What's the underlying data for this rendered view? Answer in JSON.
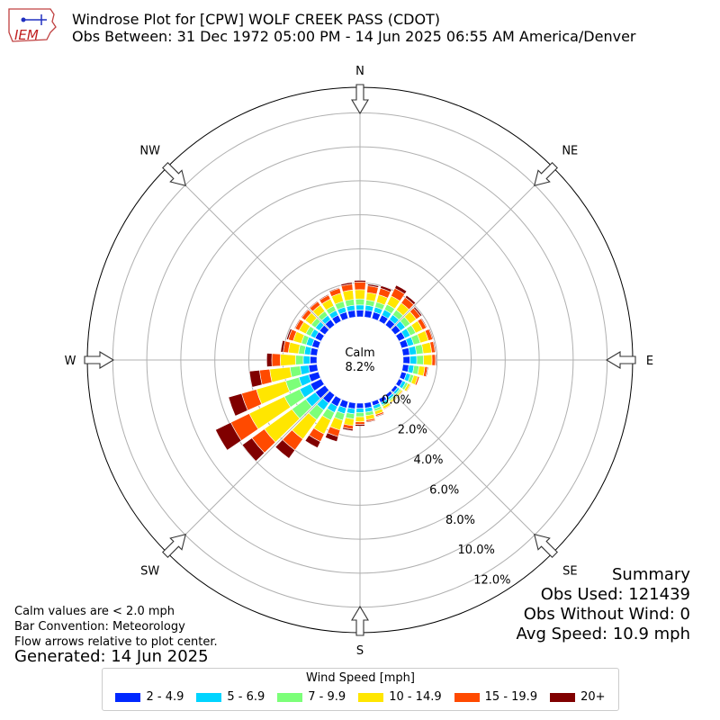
{
  "header": {
    "title_line1": "Windrose Plot for [CPW] WOLF CREEK PASS (CDOT)",
    "title_line2": "Obs Between: 31 Dec 1972 05:00 PM - 14 Jun 2025 06:55 AM America/Denver",
    "logo_text": "IEM"
  },
  "notes": {
    "line1": "Calm values are < 2.0 mph",
    "line2": "Bar Convention: Meteorology",
    "line3": "Flow arrows relative to plot center.",
    "generated": "Generated: 14 Jun 2025"
  },
  "summary": {
    "title": "Summary",
    "obs_used": "Obs Used: 121439",
    "obs_without_wind": "Obs Without Wind: 0",
    "avg_speed": "Avg Speed: 10.9 mph"
  },
  "chart_data": {
    "type": "windrose",
    "calm_label": "Calm",
    "calm_value": "8.2%",
    "directions": [
      "N",
      "NE",
      "E",
      "SE",
      "S",
      "SW",
      "W",
      "NW"
    ],
    "radial_ticks": [
      "0.0%",
      "2.0%",
      "4.0%",
      "6.0%",
      "8.0%",
      "10.0%",
      "12.0%"
    ],
    "rmax": 13.5,
    "calm_percent": 8.2,
    "legend_title": "Wind Speed [mph]",
    "bins": [
      {
        "label": "2 - 4.9",
        "color": "#0028ff"
      },
      {
        "label": "5 - 6.9",
        "color": "#00d4ff"
      },
      {
        "label": "7 - 9.9",
        "color": "#7cff79"
      },
      {
        "label": "10 - 14.9",
        "color": "#ffe600"
      },
      {
        "label": "15 - 19.9",
        "color": "#ff4a00"
      },
      {
        "label": "20+",
        "color": "#800000"
      }
    ],
    "sector_bearings": [
      0,
      10,
      20,
      30,
      40,
      50,
      60,
      70,
      80,
      90,
      100,
      110,
      120,
      130,
      140,
      150,
      160,
      170,
      180,
      190,
      200,
      210,
      220,
      230,
      240,
      250,
      260,
      270,
      280,
      290,
      300,
      310,
      320,
      330,
      340,
      350
    ],
    "sector_percent": [
      [
        0.4,
        0.3,
        0.35,
        0.55,
        0.45,
        0.1
      ],
      [
        0.4,
        0.3,
        0.3,
        0.45,
        0.4,
        0.1
      ],
      [
        0.4,
        0.3,
        0.3,
        0.45,
        0.4,
        0.15
      ],
      [
        0.4,
        0.35,
        0.35,
        0.55,
        0.5,
        0.2
      ],
      [
        0.4,
        0.35,
        0.35,
        0.5,
        0.4,
        0.15
      ],
      [
        0.4,
        0.35,
        0.35,
        0.45,
        0.3,
        0.1
      ],
      [
        0.4,
        0.35,
        0.35,
        0.45,
        0.25,
        0.05
      ],
      [
        0.4,
        0.35,
        0.4,
        0.5,
        0.25,
        0.05
      ],
      [
        0.4,
        0.4,
        0.4,
        0.5,
        0.2,
        0.05
      ],
      [
        0.4,
        0.4,
        0.4,
        0.5,
        0.2,
        0.05
      ],
      [
        0.35,
        0.3,
        0.3,
        0.35,
        0.15,
        0.05
      ],
      [
        0.3,
        0.25,
        0.2,
        0.25,
        0.1,
        0.03
      ],
      [
        0.25,
        0.2,
        0.15,
        0.15,
        0.05,
        0.02
      ],
      [
        0.2,
        0.15,
        0.1,
        0.1,
        0.05,
        0.02
      ],
      [
        0.2,
        0.15,
        0.1,
        0.1,
        0.05,
        0.02
      ],
      [
        0.25,
        0.15,
        0.1,
        0.15,
        0.05,
        0.03
      ],
      [
        0.25,
        0.2,
        0.15,
        0.2,
        0.1,
        0.05
      ],
      [
        0.3,
        0.25,
        0.2,
        0.25,
        0.1,
        0.05
      ],
      [
        0.3,
        0.25,
        0.25,
        0.3,
        0.15,
        0.1
      ],
      [
        0.35,
        0.3,
        0.3,
        0.4,
        0.2,
        0.1
      ],
      [
        0.4,
        0.35,
        0.4,
        0.6,
        0.4,
        0.3
      ],
      [
        0.5,
        0.4,
        0.5,
        0.9,
        0.5,
        0.4
      ],
      [
        0.6,
        0.5,
        0.7,
        1.4,
        0.8,
        0.6
      ],
      [
        0.7,
        0.7,
        1.0,
        2.0,
        0.9,
        0.7
      ],
      [
        0.7,
        0.7,
        1.0,
        2.3,
        1.2,
        1.0
      ],
      [
        0.6,
        0.6,
        0.8,
        1.8,
        0.9,
        0.8
      ],
      [
        0.5,
        0.5,
        0.6,
        1.2,
        0.6,
        0.6
      ],
      [
        0.4,
        0.4,
        0.45,
        0.9,
        0.5,
        0.3
      ],
      [
        0.4,
        0.35,
        0.35,
        0.6,
        0.3,
        0.15
      ],
      [
        0.4,
        0.35,
        0.3,
        0.5,
        0.3,
        0.1
      ],
      [
        0.4,
        0.3,
        0.3,
        0.45,
        0.25,
        0.05
      ],
      [
        0.4,
        0.3,
        0.3,
        0.45,
        0.25,
        0.05
      ],
      [
        0.4,
        0.3,
        0.3,
        0.45,
        0.25,
        0.05
      ],
      [
        0.4,
        0.3,
        0.3,
        0.45,
        0.25,
        0.05
      ],
      [
        0.4,
        0.3,
        0.35,
        0.5,
        0.3,
        0.05
      ],
      [
        0.4,
        0.3,
        0.35,
        0.55,
        0.35,
        0.1
      ]
    ]
  }
}
